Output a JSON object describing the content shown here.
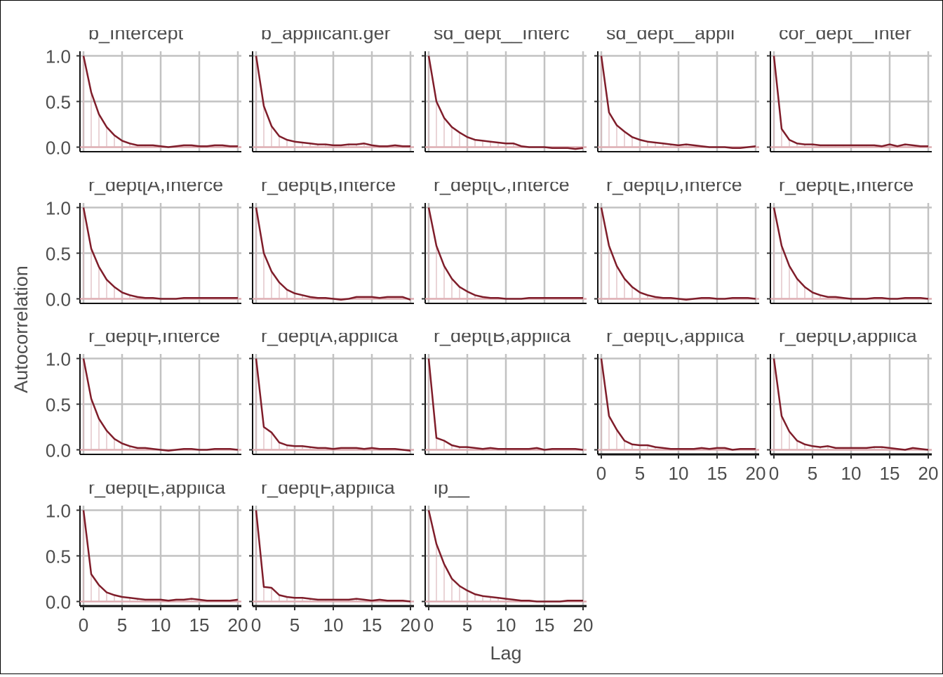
{
  "chart_data": {
    "type": "line",
    "xlabel": "Lag",
    "ylabel": "Autocorrelation",
    "xlim": [
      0,
      20
    ],
    "ylim": [
      -0.05,
      1.05
    ],
    "x_ticks": [
      0,
      5,
      10,
      15,
      20
    ],
    "x_tick_labels": [
      "0",
      "5",
      "10",
      "15",
      "20"
    ],
    "y_ticks": [
      0,
      0.5,
      1
    ],
    "y_tick_labels": [
      "0.0",
      "0.5",
      "1.0"
    ],
    "grid": true,
    "lags": [
      0,
      1,
      2,
      3,
      4,
      5,
      6,
      7,
      8,
      9,
      10,
      11,
      12,
      13,
      14,
      15,
      16,
      17,
      18,
      19,
      20
    ],
    "line_color": "#7f1d2a",
    "stem_color": "#dbb8bc",
    "zero_line_color": "#e3a8ae",
    "panels": [
      {
        "title": "b_Intercept",
        "values": [
          1.0,
          0.6,
          0.36,
          0.22,
          0.13,
          0.07,
          0.04,
          0.02,
          0.02,
          0.02,
          0.01,
          0.0,
          0.01,
          0.02,
          0.02,
          0.01,
          0.01,
          0.02,
          0.02,
          0.01,
          0.01
        ]
      },
      {
        "title": "b_applicant.ger",
        "values": [
          1.0,
          0.45,
          0.23,
          0.12,
          0.08,
          0.06,
          0.05,
          0.04,
          0.03,
          0.03,
          0.02,
          0.02,
          0.03,
          0.03,
          0.04,
          0.02,
          0.01,
          0.01,
          0.02,
          0.01,
          0.01
        ]
      },
      {
        "title": "sd_dept__Interc",
        "values": [
          1.0,
          0.5,
          0.32,
          0.22,
          0.16,
          0.11,
          0.08,
          0.07,
          0.06,
          0.05,
          0.04,
          0.04,
          0.01,
          0.0,
          0.0,
          0.0,
          -0.01,
          -0.01,
          -0.01,
          -0.02,
          -0.01
        ]
      },
      {
        "title": "sd_dept__appli",
        "values": [
          1.0,
          0.38,
          0.24,
          0.17,
          0.11,
          0.08,
          0.06,
          0.05,
          0.04,
          0.03,
          0.02,
          0.03,
          0.02,
          0.01,
          0.0,
          0.0,
          0.0,
          -0.01,
          -0.01,
          0.0,
          0.01
        ]
      },
      {
        "title": "cor_dept__Inter",
        "values": [
          1.0,
          0.2,
          0.08,
          0.04,
          0.03,
          0.03,
          0.02,
          0.02,
          0.02,
          0.02,
          0.02,
          0.02,
          0.02,
          0.02,
          0.01,
          0.03,
          0.01,
          0.03,
          0.02,
          0.01,
          0.01
        ]
      },
      {
        "title": "r_dept[A,Interce",
        "values": [
          1.0,
          0.55,
          0.35,
          0.21,
          0.13,
          0.07,
          0.04,
          0.02,
          0.01,
          0.01,
          0.0,
          0.0,
          0.0,
          0.01,
          0.01,
          0.01,
          0.01,
          0.01,
          0.01,
          0.01,
          0.01
        ]
      },
      {
        "title": "r_dept[B,Interce",
        "values": [
          1.0,
          0.5,
          0.3,
          0.18,
          0.1,
          0.06,
          0.04,
          0.02,
          0.01,
          0.01,
          0.0,
          -0.01,
          0.0,
          0.02,
          0.02,
          0.02,
          0.01,
          0.02,
          0.02,
          0.02,
          -0.01
        ]
      },
      {
        "title": "r_dept[C,Interce",
        "values": [
          1.0,
          0.58,
          0.36,
          0.22,
          0.13,
          0.08,
          0.04,
          0.02,
          0.01,
          0.01,
          0.0,
          0.0,
          0.0,
          0.01,
          0.01,
          0.01,
          0.01,
          0.01,
          0.01,
          0.01,
          0.01
        ]
      },
      {
        "title": "r_dept[D,Interce",
        "values": [
          1.0,
          0.58,
          0.36,
          0.22,
          0.13,
          0.07,
          0.04,
          0.02,
          0.01,
          0.01,
          0.0,
          -0.01,
          0.0,
          0.01,
          0.01,
          0.0,
          0.0,
          0.01,
          0.01,
          0.01,
          0.0
        ]
      },
      {
        "title": "r_dept[E,Interce",
        "values": [
          1.0,
          0.58,
          0.36,
          0.22,
          0.13,
          0.07,
          0.04,
          0.02,
          0.02,
          0.01,
          0.0,
          0.0,
          0.0,
          0.01,
          0.01,
          0.0,
          0.0,
          0.01,
          0.01,
          0.01,
          0.0
        ]
      },
      {
        "title": "r_dept[F,Interce",
        "values": [
          1.0,
          0.56,
          0.34,
          0.21,
          0.12,
          0.07,
          0.04,
          0.02,
          0.02,
          0.01,
          0.0,
          -0.01,
          0.0,
          0.01,
          0.01,
          0.0,
          0.0,
          0.01,
          0.01,
          0.01,
          0.0
        ]
      },
      {
        "title": "r_dept[A,applica",
        "values": [
          1.0,
          0.25,
          0.19,
          0.08,
          0.05,
          0.04,
          0.04,
          0.03,
          0.02,
          0.02,
          0.01,
          0.02,
          0.02,
          0.02,
          0.01,
          0.02,
          0.01,
          0.01,
          0.01,
          0.0,
          -0.01
        ]
      },
      {
        "title": "r_dept[B,applica",
        "values": [
          1.0,
          0.13,
          0.1,
          0.05,
          0.03,
          0.03,
          0.02,
          0.01,
          0.02,
          0.01,
          0.01,
          0.01,
          0.01,
          0.01,
          0.02,
          0.0,
          0.01,
          0.01,
          0.01,
          0.01,
          0.0
        ]
      },
      {
        "title": "r_dept[C,applica",
        "values": [
          1.0,
          0.37,
          0.22,
          0.1,
          0.06,
          0.05,
          0.05,
          0.03,
          0.02,
          0.01,
          0.01,
          0.01,
          0.01,
          0.02,
          0.01,
          0.02,
          0.02,
          0.0,
          0.01,
          0.01,
          0.01
        ]
      },
      {
        "title": "r_dept[D,applica",
        "values": [
          1.0,
          0.37,
          0.2,
          0.1,
          0.06,
          0.04,
          0.03,
          0.04,
          0.02,
          0.02,
          0.02,
          0.02,
          0.02,
          0.03,
          0.03,
          0.02,
          0.01,
          0.0,
          0.02,
          0.01,
          0.0
        ]
      },
      {
        "title": "r_dept[E,applica",
        "values": [
          1.0,
          0.3,
          0.18,
          0.1,
          0.07,
          0.05,
          0.04,
          0.03,
          0.02,
          0.02,
          0.02,
          0.01,
          0.02,
          0.02,
          0.03,
          0.02,
          0.01,
          0.01,
          0.01,
          0.01,
          0.02
        ]
      },
      {
        "title": "r_dept[F,applica",
        "values": [
          1.0,
          0.16,
          0.15,
          0.07,
          0.05,
          0.04,
          0.04,
          0.03,
          0.02,
          0.02,
          0.02,
          0.02,
          0.02,
          0.03,
          0.02,
          0.01,
          0.02,
          0.01,
          0.01,
          0.01,
          0.0
        ]
      },
      {
        "title": "lp__",
        "values": [
          1.0,
          0.63,
          0.41,
          0.25,
          0.17,
          0.12,
          0.08,
          0.06,
          0.05,
          0.04,
          0.03,
          0.02,
          0.01,
          0.01,
          0.0,
          0.0,
          0.0,
          0.0,
          0.01,
          0.01,
          0.01
        ]
      }
    ]
  }
}
